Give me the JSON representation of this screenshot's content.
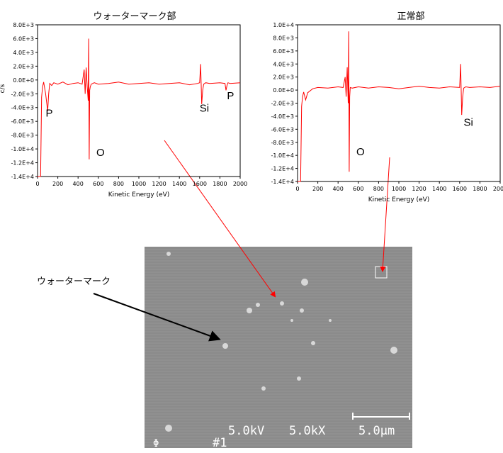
{
  "chart_data": [
    {
      "type": "line",
      "title": "ウォーターマーク部",
      "xlabel": "Kinetic Energy (eV)",
      "ylabel": "c/s",
      "xlim": [
        0,
        2000
      ],
      "ylim": [
        -14000,
        8000
      ],
      "x_ticks": [
        "0",
        "200",
        "400",
        "600",
        "800",
        "1000",
        "1200",
        "1400",
        "1600",
        "1800",
        "2000"
      ],
      "y_ticks": [
        "8.0E+3",
        "6.0E+3",
        "4.0E+3",
        "2.0E+3",
        "0.0E+0",
        "-2.0E+3",
        "-4.0E+3",
        "-6.0E+3",
        "-8.0E+3",
        "-1.0E+4",
        "-1.2E+4",
        "-1.4E+4"
      ],
      "y_tick_values": [
        8000,
        6000,
        4000,
        2000,
        0,
        -2000,
        -4000,
        -6000,
        -8000,
        -10000,
        -12000,
        -14000
      ],
      "series": [
        {
          "x": [
            0,
            10,
            20,
            30,
            40,
            50,
            60,
            80,
            100,
            110,
            120,
            140,
            160,
            200,
            250,
            300,
            350,
            400,
            440,
            460,
            470,
            480,
            490,
            500,
            505,
            510,
            515,
            520,
            530,
            560,
            600,
            700,
            800,
            900,
            1000,
            1100,
            1200,
            1300,
            1400,
            1500,
            1580,
            1600,
            1610,
            1620,
            1630,
            1640,
            1660,
            1700,
            1800,
            1850,
            1860,
            1870,
            1880,
            1900,
            2000
          ],
          "y": [
            -14000,
            -14000,
            -14000,
            -14000,
            -2500,
            -1000,
            -300,
            -2000,
            -4500,
            -2000,
            -500,
            -800,
            -400,
            -600,
            -300,
            -700,
            -500,
            -400,
            -600,
            1500,
            -2000,
            1800,
            -1000,
            -3000,
            6000,
            -11500,
            -1500,
            -1000,
            -600,
            -400,
            -600,
            -500,
            -300,
            -600,
            -500,
            -400,
            -600,
            -500,
            -400,
            -700,
            -500,
            -400,
            2300,
            -3500,
            -1500,
            -600,
            -400,
            -500,
            -400,
            -500,
            -1500,
            -800,
            -400,
            -500,
            -400
          ]
        }
      ],
      "annotations": [
        {
          "text": "P",
          "x": 80,
          "y": -5300
        },
        {
          "text": "O",
          "x": 580,
          "y": -11000
        },
        {
          "text": "Si",
          "x": 1600,
          "y": -4600
        },
        {
          "text": "P",
          "x": 1870,
          "y": -2800
        }
      ]
    },
    {
      "type": "line",
      "title": "正常部",
      "xlabel": "Kinetic Energy (eV)",
      "ylabel": "",
      "xlim": [
        0,
        2000
      ],
      "ylim": [
        -14000,
        10000
      ],
      "x_ticks": [
        "0",
        "200",
        "400",
        "600",
        "800",
        "1000",
        "1200",
        "1400",
        "1600",
        "1800",
        "2000"
      ],
      "y_ticks": [
        "1.0E+4",
        "8.0E+3",
        "6.0E+3",
        "4.0E+3",
        "2.0E+3",
        "0.0E+0",
        "-2.0E+3",
        "-4.0E+3",
        "-6.0E+3",
        "-8.0E+3",
        "-1.0E+4",
        "-1.2E+4",
        "-1.4E+4"
      ],
      "y_tick_values": [
        10000,
        8000,
        6000,
        4000,
        2000,
        0,
        -2000,
        -4000,
        -6000,
        -8000,
        -10000,
        -12000,
        -14000
      ],
      "series": [
        {
          "x": [
            0,
            10,
            20,
            30,
            40,
            50,
            60,
            80,
            100,
            150,
            200,
            300,
            400,
            450,
            470,
            480,
            490,
            500,
            505,
            510,
            515,
            520,
            540,
            600,
            700,
            800,
            900,
            1000,
            1100,
            1200,
            1300,
            1400,
            1500,
            1600,
            1610,
            1620,
            1630,
            1640,
            1660,
            1700,
            1800,
            1900,
            2000
          ],
          "y": [
            -14000,
            -14000,
            -14000,
            -14000,
            -2500,
            -1000,
            -300,
            -1500,
            -400,
            200,
            400,
            300,
            500,
            400,
            2000,
            -1000,
            3500,
            -2000,
            9000,
            -12500,
            -1000,
            400,
            300,
            500,
            300,
            500,
            400,
            200,
            400,
            600,
            400,
            300,
            500,
            400,
            4000,
            -3800,
            -1000,
            300,
            500,
            400,
            500,
            400,
            600
          ]
        }
      ],
      "annotations": [
        {
          "text": "O",
          "x": 580,
          "y": -10000
        },
        {
          "text": "Si",
          "x": 1640,
          "y": -5500
        }
      ]
    }
  ],
  "sem": {
    "voltage": "5.0kV",
    "magnification": "5.0kX",
    "scale": "5.0μm",
    "frame_number": "#1",
    "symbol": "Φ"
  },
  "callout": {
    "label": "ウォーターマーク"
  },
  "colors": {
    "spectrum": "#ff0000",
    "arrow_red": "#ff0000",
    "arrow_black": "#000000",
    "sem_background": "#8a8a8a"
  }
}
